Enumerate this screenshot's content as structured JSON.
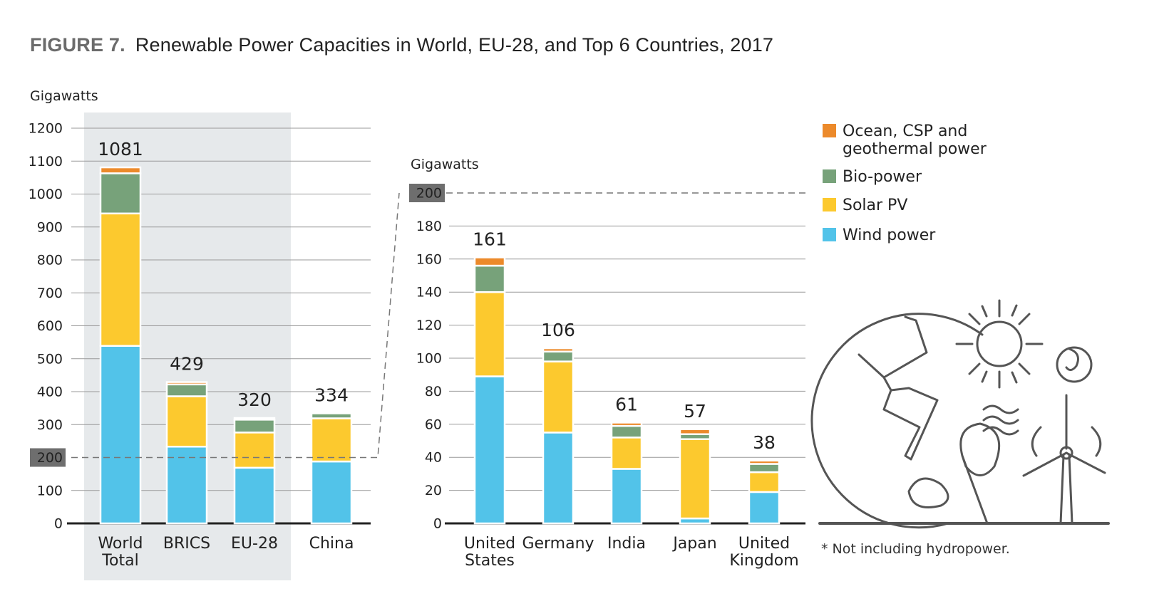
{
  "figure_label": "FIGURE 7.",
  "title": "Renewable Power Capacities in World, EU-28, and Top 6 Countries, 2017",
  "footnote": "* Not including hydropower.",
  "chart_data": [
    {
      "type": "stacked_bar",
      "y_label": "Gigawatts",
      "categories": [
        "World Total",
        "BRICS",
        "EU-28",
        "China"
      ],
      "series": [
        {
          "name": "Wind power",
          "color": "#52c3e9",
          "values": [
            539,
            233,
            169,
            188
          ]
        },
        {
          "name": "Solar PV",
          "color": "#fcc92e",
          "values": [
            402,
            153,
            107,
            131
          ]
        },
        {
          "name": "Bio-power",
          "color": "#77a27a",
          "values": [
            122,
            36,
            39,
            15
          ]
        },
        {
          "name": "Ocean, CSP and geothermal power",
          "color": "#ec8a2b",
          "values": [
            18,
            7,
            5,
            0
          ]
        }
      ],
      "totals": [
        1081,
        429,
        320,
        334
      ],
      "ylim": [
        0,
        1200
      ],
      "yticks": [
        0,
        100,
        200,
        300,
        400,
        500,
        600,
        700,
        800,
        900,
        1000,
        1100,
        1200
      ],
      "grid": true
    },
    {
      "type": "stacked_bar",
      "y_label": "Gigawatts",
      "categories": [
        "United States",
        "Germany",
        "India",
        "Japan",
        "United Kingdom"
      ],
      "series": [
        {
          "name": "Wind power",
          "color": "#52c3e9",
          "values": [
            89,
            55,
            33,
            3,
            19
          ]
        },
        {
          "name": "Solar PV",
          "color": "#fcc92e",
          "values": [
            51,
            43,
            19,
            48,
            12
          ]
        },
        {
          "name": "Bio-power",
          "color": "#77a27a",
          "values": [
            16,
            6,
            7,
            3,
            5
          ]
        },
        {
          "name": "Ocean, CSP and geothermal power",
          "color": "#ec8a2b",
          "values": [
            5,
            2,
            2,
            3,
            2
          ]
        }
      ],
      "totals": [
        161,
        106,
        61,
        57,
        38
      ],
      "ylim": [
        0,
        200
      ],
      "yticks": [
        0,
        20,
        40,
        60,
        80,
        100,
        120,
        140,
        160,
        180,
        200
      ],
      "grid": true
    }
  ]
}
